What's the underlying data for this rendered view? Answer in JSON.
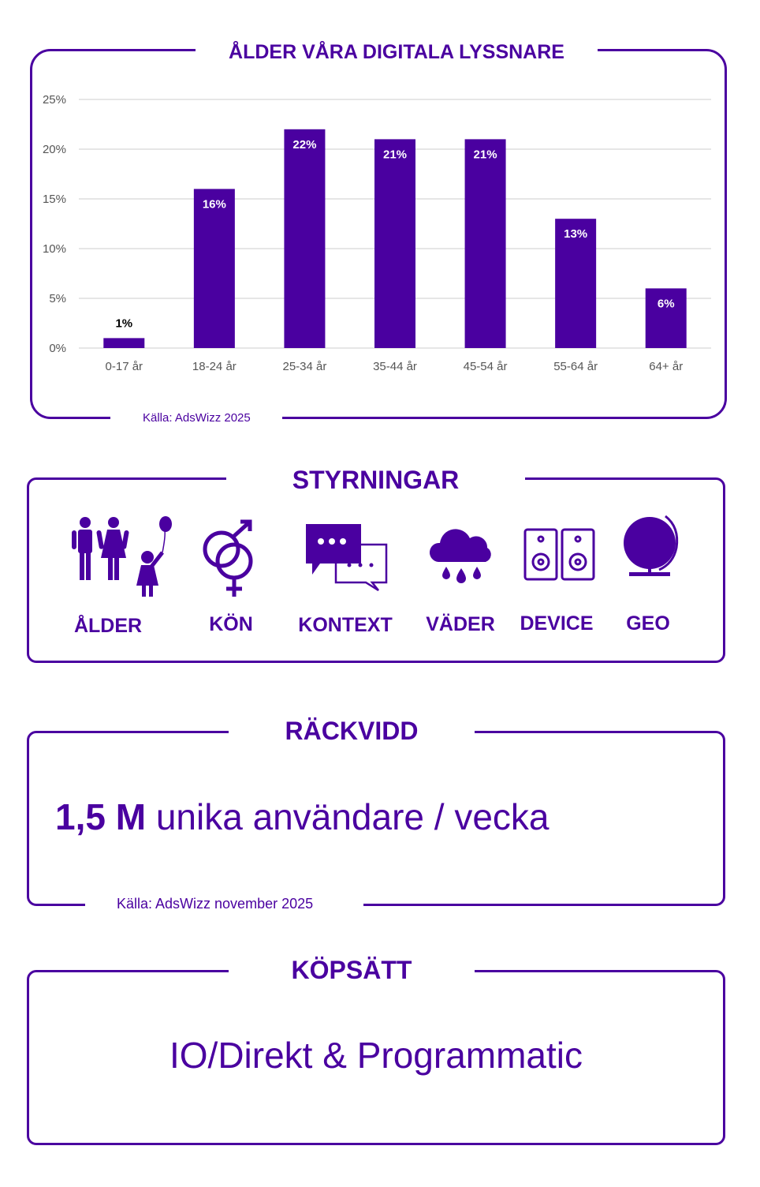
{
  "accent_color": "#4a00a0",
  "chart_data": {
    "type": "bar",
    "title": "ÅLDER VÅRA DIGITALA LYSSNARE",
    "categories": [
      "0-17 år",
      "18-24 år",
      "25-34 år",
      "35-44 år",
      "45-54 år",
      "55-64 år",
      "64+ år"
    ],
    "values": [
      1,
      16,
      22,
      21,
      21,
      13,
      6
    ],
    "data_labels": [
      "1%",
      "16%",
      "22%",
      "21%",
      "21%",
      "13%",
      "6%"
    ],
    "yticks": [
      0,
      5,
      10,
      15,
      20,
      25
    ],
    "ytick_labels": [
      "0%",
      "5%",
      "10%",
      "15%",
      "20%",
      "25%"
    ],
    "ylim": [
      0,
      25
    ],
    "xlabel": "",
    "ylabel": "",
    "grid": true,
    "source": "Källa: AdsWizz 2025"
  },
  "targeting": {
    "title": "STYRNINGAR",
    "items": [
      {
        "label": "ÅLDER",
        "icon": "family-icon"
      },
      {
        "label": "KÖN",
        "icon": "gender-icon"
      },
      {
        "label": "KONTEXT",
        "icon": "speech-bubbles-icon"
      },
      {
        "label": "VÄDER",
        "icon": "rain-cloud-icon"
      },
      {
        "label": "DEVICE",
        "icon": "speakers-icon"
      },
      {
        "label": "GEO",
        "icon": "globe-icon"
      }
    ]
  },
  "reach": {
    "title": "RÄCKVIDD",
    "value": "1,5 M",
    "text": "unika användare / vecka",
    "source": "Källa: AdsWizz november 2025"
  },
  "buying": {
    "title": "KÖPSÄTT",
    "text": "IO/Direkt & Programmatic"
  }
}
